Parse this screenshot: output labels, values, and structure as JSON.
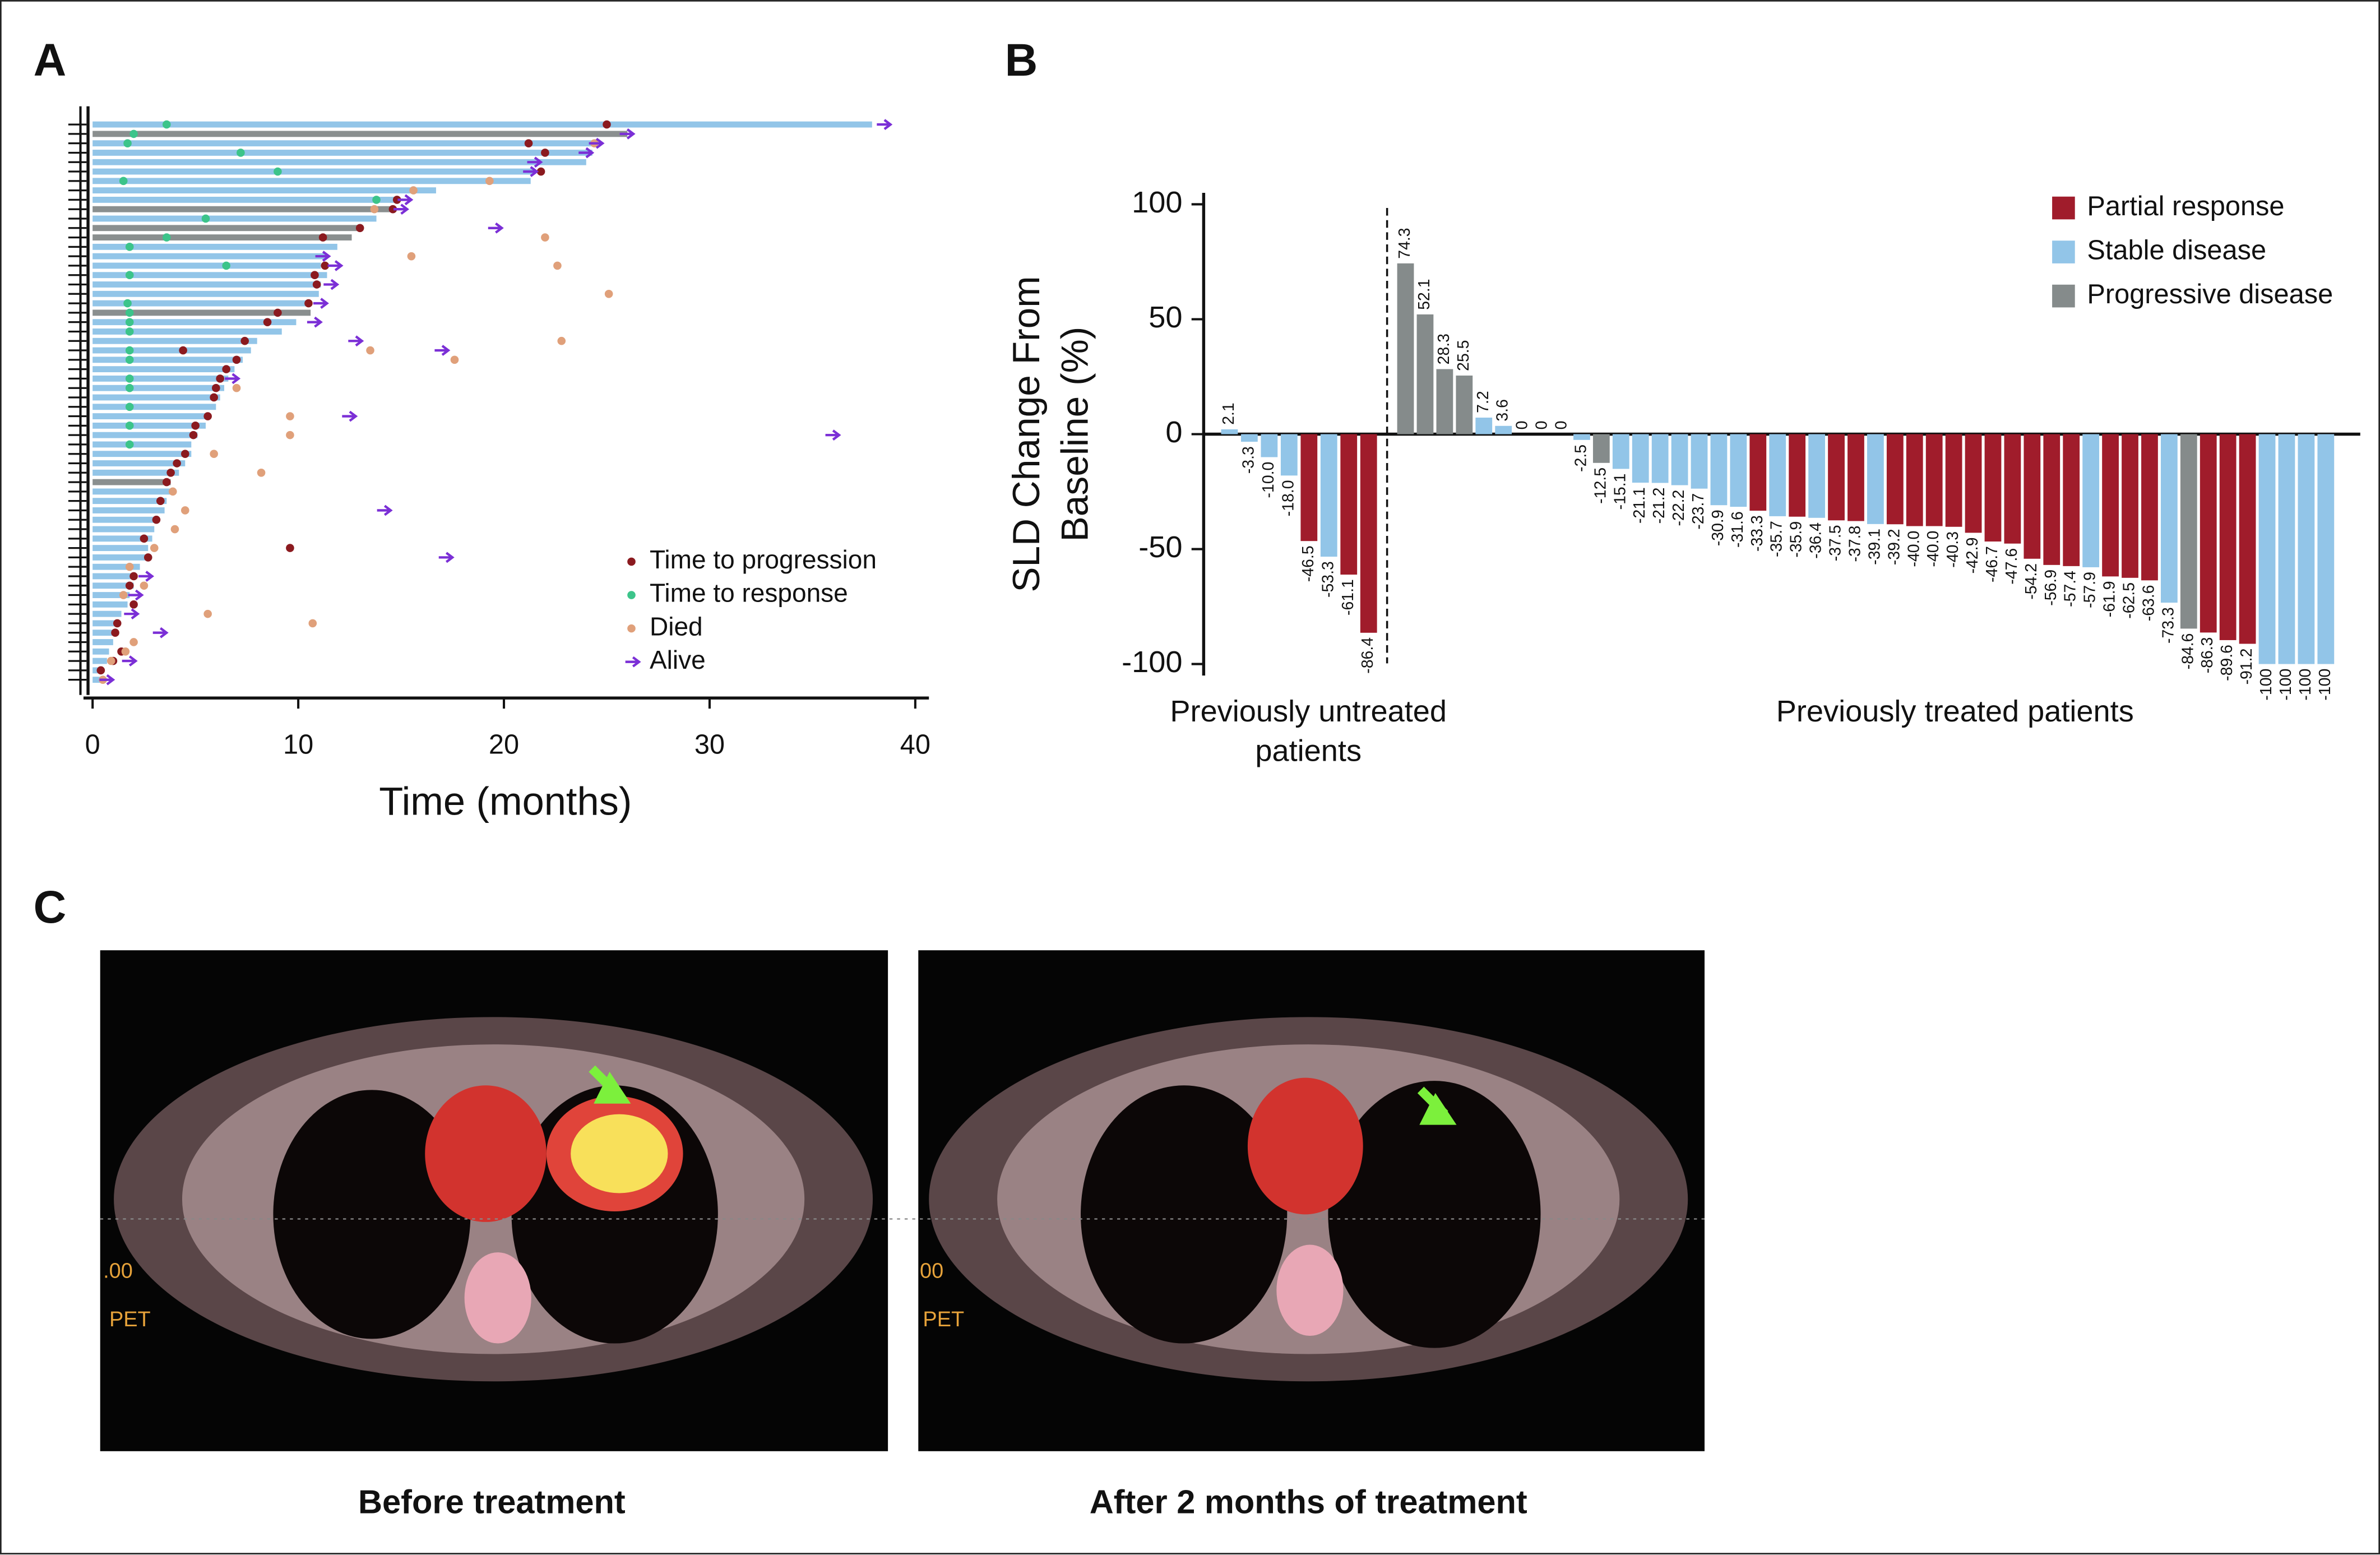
{
  "chart_data": [
    {
      "type": "swimmer",
      "panel_label": "A",
      "xlabel": "Time (months)",
      "xlim": [
        0,
        40
      ],
      "xticks": [
        0,
        10,
        20,
        30,
        40
      ],
      "categories": [
        null,
        null,
        null,
        null,
        null,
        null,
        null,
        null,
        null,
        null,
        null,
        null,
        null,
        null,
        null,
        null,
        null,
        null,
        null,
        null,
        null,
        null,
        null,
        null,
        null,
        null,
        null,
        null,
        null,
        null,
        null,
        null,
        null,
        null,
        null,
        null,
        null,
        null,
        null,
        null,
        null,
        null,
        null,
        null,
        null,
        null,
        null,
        null,
        null,
        null,
        null,
        null,
        null,
        null,
        null,
        null,
        null,
        null,
        null,
        null
      ],
      "values": [
        37.9,
        26.0,
        24.4,
        24.3,
        24.0,
        21.5,
        21.3,
        16.7,
        14.7,
        14.5,
        13.8,
        13.1,
        12.6,
        11.9,
        11.4,
        11.1,
        11.4,
        11.1,
        11.0,
        10.6,
        10.6,
        9.9,
        9.2,
        8.0,
        7.7,
        7.3,
        6.9,
        6.6,
        6.4,
        6.2,
        6.0,
        5.7,
        5.5,
        5.1,
        4.8,
        4.8,
        4.5,
        4.2,
        3.8,
        3.8,
        3.6,
        3.5,
        3.2,
        3.0,
        2.9,
        2.7,
        2.6,
        2.3,
        2.1,
        2.0,
        1.8,
        1.7,
        1.4,
        1.3,
        1.1,
        1.0,
        0.8,
        0.7,
        0.5,
        0.4
      ],
      "bar_colors": [
        "#92c5e8",
        "#8a8f8f",
        "#92c5e8",
        "#92c5e8",
        "#92c5e8",
        "#92c5e8",
        "#92c5e8",
        "#92c5e8",
        "#92c5e8",
        "#8a8f8f",
        "#92c5e8",
        "#8a8f8f",
        "#8a8f8f",
        "#92c5e8",
        "#92c5e8",
        "#92c5e8",
        "#92c5e8",
        "#92c5e8",
        "#92c5e8",
        "#92c5e8",
        "#8a8f8f",
        "#92c5e8",
        "#92c5e8",
        "#92c5e8",
        "#92c5e8",
        "#92c5e8",
        "#92c5e8",
        "#92c5e8",
        "#92c5e8",
        "#92c5e8",
        "#92c5e8",
        "#92c5e8",
        "#92c5e8",
        "#92c5e8",
        "#92c5e8",
        "#92c5e8",
        "#92c5e8",
        "#92c5e8",
        "#8a8f8f",
        "#92c5e8",
        "#92c5e8",
        "#92c5e8",
        "#92c5e8",
        "#92c5e8",
        "#92c5e8",
        "#92c5e8",
        "#92c5e8",
        "#92c5e8",
        "#92c5e8",
        "#92c5e8",
        "#92c5e8",
        "#92c5e8",
        "#92c5e8",
        "#92c5e8",
        "#92c5e8",
        "#92c5e8",
        "#92c5e8",
        "#92c5e8",
        "#92c5e8",
        "#92c5e8"
      ],
      "events": [
        {
          "name": "Time to progression",
          "color": "#8b1a1f",
          "marker": "dot",
          "rows": [
            0,
            2,
            3,
            5,
            8,
            9,
            11,
            12,
            15,
            16,
            17,
            19,
            20,
            21,
            23,
            24,
            25,
            26,
            27,
            28,
            29,
            31,
            32,
            33,
            35,
            36,
            37,
            38,
            40,
            42,
            44,
            45,
            46,
            48,
            49,
            51,
            53,
            54,
            56,
            57,
            58
          ],
          "x": [
            25.0,
            21.2,
            22.0,
            21.8,
            14.8,
            14.6,
            13.0,
            11.2,
            11.3,
            10.8,
            10.9,
            10.5,
            9.0,
            8.5,
            7.4,
            4.4,
            7.0,
            6.5,
            6.2,
            6.0,
            5.9,
            5.6,
            5.0,
            4.9,
            4.5,
            4.1,
            3.8,
            3.6,
            3.3,
            3.1,
            2.5,
            9.6,
            2.7,
            2.0,
            1.8,
            2.0,
            1.2,
            1.1,
            1.4,
            1.0,
            0.4
          ]
        },
        {
          "name": "Time to response",
          "color": "#3cc48a",
          "marker": "dot",
          "rows": [
            0,
            1,
            2,
            3,
            5,
            6,
            8,
            10,
            12,
            13,
            15,
            16,
            19,
            20,
            21,
            22,
            24,
            25,
            27,
            28,
            30,
            32,
            34
          ],
          "x": [
            3.6,
            2.0,
            1.7,
            7.2,
            9.0,
            1.5,
            13.8,
            5.5,
            3.6,
            1.8,
            6.5,
            1.8,
            1.7,
            1.8,
            1.8,
            1.8,
            1.8,
            1.8,
            1.8,
            1.8,
            1.8,
            1.8,
            1.8
          ]
        },
        {
          "name": "Died",
          "color": "#e0a07a",
          "marker": "dot",
          "rows": [
            2,
            6,
            7,
            9,
            12,
            14,
            15,
            18,
            23,
            24,
            25,
            28,
            31,
            33,
            35,
            37,
            39,
            41,
            43,
            45,
            47,
            49,
            50,
            52,
            53,
            55,
            56,
            57,
            59
          ],
          "x": [
            24.4,
            19.3,
            15.6,
            13.7,
            22.0,
            15.5,
            22.6,
            25.1,
            22.8,
            13.5,
            17.6,
            7.0,
            9.6,
            9.6,
            5.9,
            8.2,
            3.9,
            4.5,
            4.0,
            3.0,
            1.8,
            2.5,
            1.5,
            5.6,
            10.7,
            2.0,
            1.6,
            0.9,
            0.5
          ]
        },
        {
          "name": "Alive",
          "color": "#7b2fd6",
          "marker": "arrow",
          "rows": [
            0,
            1,
            2,
            3,
            4,
            5,
            8,
            9,
            11,
            14,
            15,
            17,
            19,
            21,
            23,
            24,
            27,
            31,
            33,
            41,
            46,
            48,
            50,
            52,
            54,
            57,
            59
          ],
          "x": [
            38.5,
            26.0,
            24.5,
            24.0,
            21.5,
            21.3,
            15.2,
            15.0,
            19.6,
            11.2,
            11.8,
            11.6,
            11.1,
            10.8,
            12.8,
            17.0,
            6.8,
            12.5,
            36.0,
            14.2,
            17.2,
            2.6,
            2.1,
            1.9,
            3.3,
            1.8,
            0.7
          ]
        }
      ]
    },
    {
      "type": "waterfall",
      "panel_label": "B",
      "ylabel": [
        "SLD Change From",
        "Baseline (%)"
      ],
      "ylim": [
        -105,
        105
      ],
      "yticks": [
        -100,
        -50,
        0,
        50,
        100
      ],
      "legend": [
        {
          "name": "Partial response",
          "color": "#a01c2b"
        },
        {
          "name": "Stable disease",
          "color": "#92c5e8"
        },
        {
          "name": "Progressive disease",
          "color": "#858b8b"
        }
      ],
      "groups": [
        {
          "name": [
            "Previously untreated",
            "patients"
          ],
          "values": [
            2.1,
            -3.3,
            -10.0,
            -18.0,
            -46.5,
            -53.3,
            -61.1,
            -86.4
          ],
          "value_labels": [
            "2.1",
            "-3.3",
            "-10.0",
            "-18.0",
            "-46.5",
            "-53.3",
            "-61.1",
            "-86.4"
          ],
          "colors": [
            "#92c5e8",
            "#92c5e8",
            "#92c5e8",
            "#92c5e8",
            "#a01c2b",
            "#92c5e8",
            "#a01c2b",
            "#a01c2b"
          ]
        },
        {
          "name": [
            "Previously treated patients"
          ],
          "values": [
            74.3,
            52.1,
            28.3,
            25.5,
            7.2,
            3.6,
            0,
            0,
            0,
            -2.5,
            -12.5,
            -15.1,
            -21.1,
            -21.2,
            -22.2,
            -23.7,
            -30.9,
            -31.6,
            -33.3,
            -35.7,
            -35.9,
            -36.4,
            -37.5,
            -37.8,
            -39.1,
            -39.2,
            -40.0,
            -40.0,
            -40.3,
            -42.9,
            -46.7,
            -47.6,
            -54.2,
            -56.9,
            -57.4,
            -57.9,
            -61.9,
            -62.5,
            -63.6,
            -73.3,
            -84.6,
            -86.3,
            -89.6,
            -91.2,
            -100,
            -100,
            -100,
            -100
          ],
          "value_labels": [
            "74.3",
            "52.1",
            "28.3",
            "25.5",
            "7.2",
            "3.6",
            "0",
            "0",
            "0",
            "-2.5",
            "-12.5",
            "-15.1",
            "-21.1",
            "-21.2",
            "-22.2",
            "-23.7",
            "-30.9",
            "-31.6",
            "-33.3",
            "-35.7",
            "-35.9",
            "-36.4",
            "-37.5",
            "-37.8",
            "-39.1",
            "-39.2",
            "-40.0",
            "-40.0",
            "-40.3",
            "-42.9",
            "-46.7",
            "-47.6",
            "-54.2",
            "-56.9",
            "-57.4",
            "-57.9",
            "-61.9",
            "-62.5",
            "-63.6",
            "-73.3",
            "-84.6",
            "-86.3",
            "-89.6",
            "-91.2",
            "-100",
            "-100",
            "-100",
            "-100"
          ],
          "colors": [
            "#858b8b",
            "#858b8b",
            "#858b8b",
            "#858b8b",
            "#92c5e8",
            "#92c5e8",
            "#92c5e8",
            "#92c5e8",
            "#92c5e8",
            "#92c5e8",
            "#858b8b",
            "#92c5e8",
            "#92c5e8",
            "#92c5e8",
            "#92c5e8",
            "#92c5e8",
            "#92c5e8",
            "#92c5e8",
            "#a01c2b",
            "#92c5e8",
            "#a01c2b",
            "#92c5e8",
            "#a01c2b",
            "#a01c2b",
            "#92c5e8",
            "#a01c2b",
            "#a01c2b",
            "#a01c2b",
            "#a01c2b",
            "#a01c2b",
            "#a01c2b",
            "#a01c2b",
            "#a01c2b",
            "#a01c2b",
            "#a01c2b",
            "#92c5e8",
            "#a01c2b",
            "#a01c2b",
            "#a01c2b",
            "#92c5e8",
            "#858b8b",
            "#a01c2b",
            "#a01c2b",
            "#a01c2b",
            "#92c5e8",
            "#92c5e8",
            "#92c5e8",
            "#92c5e8"
          ]
        }
      ]
    }
  ],
  "panel_c": {
    "panel_label": "C",
    "images": [
      {
        "caption": "Before treatment",
        "overlay": [
          ".00",
          "PET"
        ]
      },
      {
        "caption": "After 2 months of treatment",
        "overlay": [
          "00",
          "PET"
        ]
      }
    ]
  }
}
